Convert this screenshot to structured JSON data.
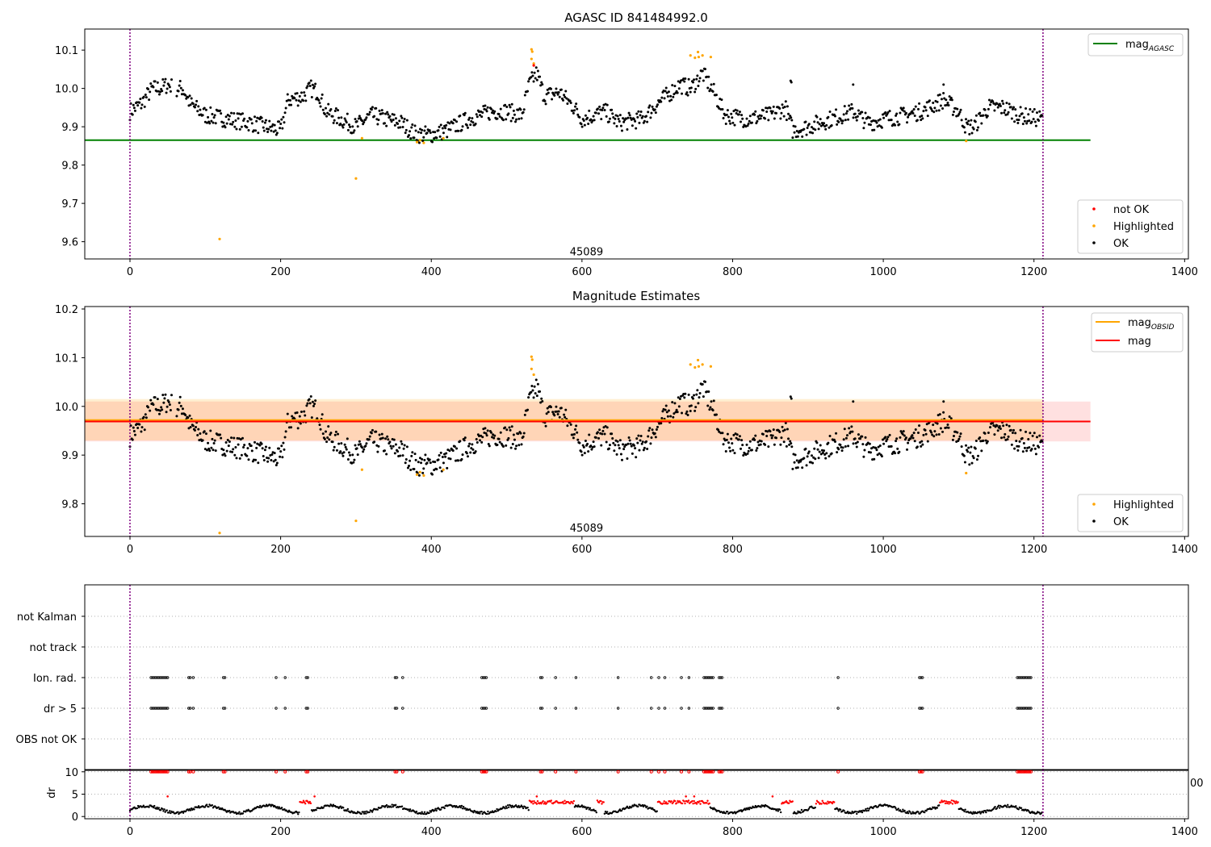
{
  "chart_data": [
    {
      "type": "scatter",
      "title": "AGASC ID 841484992.0",
      "xlim": [
        -60,
        1405
      ],
      "ylim": [
        9.555,
        10.155
      ],
      "x_ticks": [
        0,
        200,
        400,
        600,
        800,
        1000,
        1200,
        1400
      ],
      "y_ticks": [
        9.6,
        9.7,
        9.8,
        9.9,
        10.0,
        10.1
      ],
      "vlines": [
        0,
        1212
      ],
      "annotation": {
        "text": "45089",
        "x": 606,
        "y": 9.565
      },
      "hline": {
        "label_main": "mag",
        "label_sub": "AGASC",
        "y": 9.865,
        "x_end": 1275,
        "color": "#008000"
      },
      "legend_lines_placement": "top-right",
      "legend_points_placement": "bottom-right",
      "point_legend": [
        {
          "label": "not OK",
          "color": "#ff0000"
        },
        {
          "label": "Highlighted",
          "color": "#ffa500"
        },
        {
          "label": "OK",
          "color": "#000000"
        }
      ],
      "series": [
        {
          "name": "OK",
          "color": "#000000"
        },
        {
          "name": "Highlighted",
          "color": "#ffa500",
          "points": [
            [
              119,
              9.607
            ],
            [
              300,
              9.765
            ],
            [
              308,
              9.87
            ],
            [
              381,
              9.86
            ],
            [
              385,
              9.865
            ],
            [
              390,
              9.858
            ],
            [
              416,
              9.87
            ],
            [
              533,
              10.102
            ],
            [
              534,
              10.096
            ],
            [
              533,
              10.077
            ],
            [
              536,
              10.065
            ],
            [
              744,
              10.086
            ],
            [
              750,
              10.08
            ],
            [
              754,
              10.095
            ],
            [
              755,
              10.082
            ],
            [
              760,
              10.086
            ],
            [
              771,
              10.082
            ],
            [
              1110,
              9.863
            ]
          ]
        },
        {
          "name": "not OK",
          "color": "#ff0000"
        }
      ]
    },
    {
      "type": "scatter",
      "title": "Magnitude Estimates",
      "xlim": [
        -60,
        1405
      ],
      "ylim": [
        9.733,
        10.205
      ],
      "x_ticks": [
        0,
        200,
        400,
        600,
        800,
        1000,
        1200,
        1400
      ],
      "y_ticks": [
        9.8,
        9.9,
        10.0,
        10.1,
        10.2
      ],
      "vlines": [
        0,
        1212
      ],
      "annotation": {
        "text": "45089",
        "x": 606,
        "y": 9.743
      },
      "lines": [
        {
          "label_main": "mag",
          "label_sub": "OBSID",
          "y": 9.972,
          "x_end": 1212,
          "band": [
            9.93,
            10.015
          ],
          "color": "#ffa500"
        },
        {
          "label_main": "mag",
          "label_sub": "",
          "y": 9.969,
          "x_end": 1275,
          "band": [
            9.928,
            10.01
          ],
          "color": "#ff0000"
        }
      ],
      "legend_lines_placement": "top-right",
      "legend_points_placement": "bottom-right",
      "point_legend": [
        {
          "label": "Highlighted",
          "color": "#ffa500"
        },
        {
          "label": "OK",
          "color": "#000000"
        }
      ]
    },
    {
      "type": "scatter",
      "categories": [
        "OBS not OK",
        "dr > 5",
        "Ion. rad.",
        "not track",
        "not Kalman"
      ],
      "flag_x": [
        28,
        30,
        32,
        34,
        36,
        38,
        40,
        42,
        44,
        46,
        48,
        50,
        78,
        80,
        84,
        124,
        126,
        194,
        206,
        234,
        236,
        352,
        354,
        362,
        467,
        469,
        471,
        473,
        545,
        547,
        565,
        592,
        648,
        692,
        702,
        710,
        732,
        742,
        762,
        764,
        766,
        768,
        770,
        772,
        774,
        782,
        784,
        786,
        940,
        1048,
        1050,
        1052,
        1178,
        1180,
        1182,
        1184,
        1186,
        1188,
        1190,
        1192,
        1194,
        1196
      ],
      "flag_rows": [
        "dr > 5",
        "Ion. rad."
      ],
      "vlines": [
        0,
        1212
      ]
    },
    {
      "type": "scatter",
      "ylabel": "dr",
      "xlim": [
        -60,
        1405
      ],
      "ylim": [
        -0.5,
        10.5
      ],
      "y_ticks": [
        0,
        5,
        10
      ],
      "x_ticks": [
        0,
        200,
        400,
        600,
        800,
        1000,
        1200,
        1400
      ],
      "clipped_tick": "00",
      "vlines": [
        0,
        1212
      ]
    }
  ]
}
